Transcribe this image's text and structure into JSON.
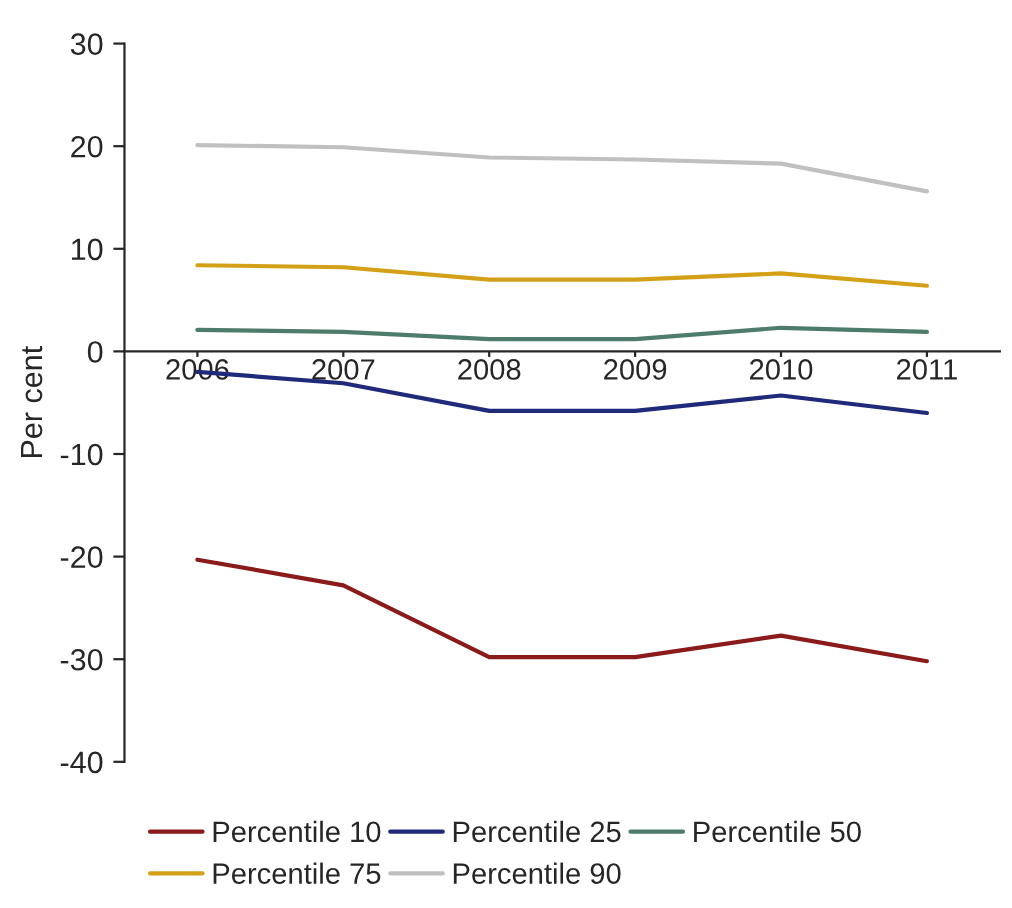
{
  "chart_data": {
    "type": "line",
    "ylabel": "Per cent",
    "categories": [
      "2006",
      "2007",
      "2008",
      "2009",
      "2010",
      "2011"
    ],
    "series": [
      {
        "name": "Percentile 10",
        "color": "#8b1a1a",
        "values": [
          -20.3,
          -22.8,
          -29.8,
          -29.8,
          -27.7,
          -30.2
        ]
      },
      {
        "name": "Percentile 25",
        "color": "#1f2a7a",
        "values": [
          -2.0,
          -3.1,
          -5.8,
          -5.8,
          -4.3,
          -6.0
        ]
      },
      {
        "name": "Percentile 50",
        "color": "#4e7c6a",
        "values": [
          2.1,
          1.9,
          1.2,
          1.2,
          2.3,
          1.9
        ]
      },
      {
        "name": "Percentile 75",
        "color": "#d4a017",
        "values": [
          8.4,
          8.2,
          7.0,
          7.0,
          7.6,
          6.4
        ]
      },
      {
        "name": "Percentile 90",
        "color": "#c0c0c0",
        "values": [
          20.1,
          19.9,
          18.9,
          18.7,
          18.3,
          15.6
        ]
      }
    ],
    "ylim": [
      -40,
      30
    ],
    "yticks": [
      -40,
      -30,
      -20,
      -10,
      0,
      10,
      20,
      30
    ],
    "grid": false,
    "legend": "bottom",
    "marker": "none",
    "line_style": "solid"
  }
}
